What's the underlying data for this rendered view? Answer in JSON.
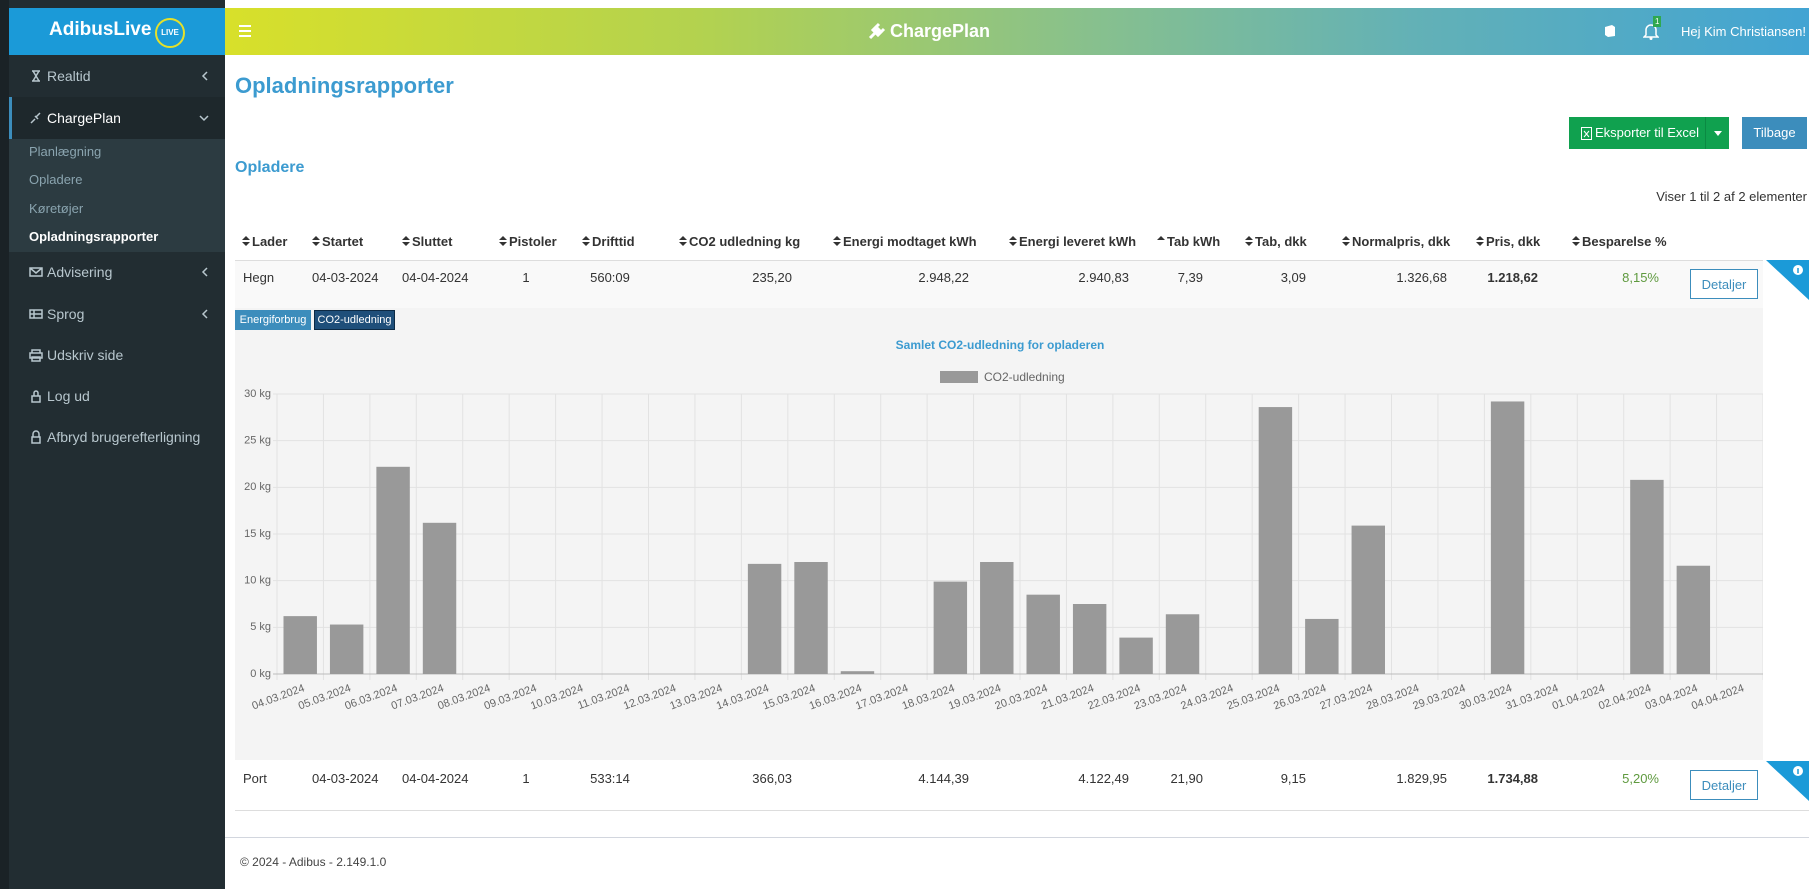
{
  "sidebar": {
    "brand": "AdibusLive",
    "badge": "LIVE",
    "menu": [
      "Realtid",
      "ChargePlan",
      "Advisering",
      "Sprog",
      "Udskriv side",
      "Log ud",
      "Afbryd brugerefterligning"
    ],
    "submenu": [
      "Planlægning",
      "Opladere",
      "Køretøjer",
      "Opladningsrapporter"
    ]
  },
  "header": {
    "app_name": "ChargePlan",
    "notifications": "1",
    "greeting": "Hej Kim Christiansen!"
  },
  "page_title": "Opladningsrapporter",
  "buttons": {
    "export": "Eksporter til Excel",
    "back": "Tilbage"
  },
  "section_title": "Opladere",
  "table": {
    "info": "Viser 1 til 2 af 2 elementer",
    "columns": [
      "Lader",
      "Startet",
      "Sluttet",
      "Pistoler",
      "Drifttid",
      "CO2 udledning kg",
      "Energi modtaget kWh",
      "Energi leveret kWh",
      "Tab kWh",
      "Tab, dkk",
      "Normalpris, dkk",
      "Pris, dkk",
      "Besparelse %"
    ],
    "rows": [
      [
        "Hegn",
        "04-03-2024",
        "04-04-2024",
        "1",
        "560:09",
        "235,20",
        "2.948,22",
        "2.940,83",
        "7,39",
        "3,09",
        "1.326,68",
        "1.218,62",
        "8,15%"
      ],
      [
        "Port",
        "04-03-2024",
        "04-04-2024",
        "1",
        "533:14",
        "366,03",
        "4.144,39",
        "4.122,49",
        "21,90",
        "9,15",
        "1.829,95",
        "1.734,88",
        "5,20%"
      ]
    ],
    "row_action": "Detaljer"
  },
  "chart_tabs": [
    "Energiforbrug",
    "CO2-udledning"
  ],
  "chart_data": {
    "type": "bar",
    "title": "Samlet CO2-udledning for opladeren",
    "categories": [
      "04.03.2024",
      "05.03.2024",
      "06.03.2024",
      "07.03.2024",
      "08.03.2024",
      "09.03.2024",
      "10.03.2024",
      "11.03.2024",
      "12.03.2024",
      "13.03.2024",
      "14.03.2024",
      "15.03.2024",
      "16.03.2024",
      "17.03.2024",
      "18.03.2024",
      "19.03.2024",
      "20.03.2024",
      "21.03.2024",
      "22.03.2024",
      "23.03.2024",
      "24.03.2024",
      "25.03.2024",
      "26.03.2024",
      "27.03.2024",
      "28.03.2024",
      "29.03.2024",
      "30.03.2024",
      "31.03.2024",
      "01.04.2024",
      "02.04.2024",
      "03.04.2024",
      "04.04.2024"
    ],
    "series": [
      {
        "name": "CO2-udledning",
        "color": "#999999",
        "values": [
          6.2,
          5.3,
          22.2,
          16.2,
          0,
          0,
          0,
          0,
          0,
          0,
          11.8,
          12.0,
          0.3,
          0,
          9.9,
          12.0,
          8.5,
          7.5,
          3.9,
          6.4,
          0,
          28.6,
          5.9,
          15.9,
          0,
          0,
          29.2,
          0,
          0,
          20.8,
          11.6,
          0
        ]
      }
    ],
    "ylim": [
      0,
      30
    ],
    "yticks": [
      {
        "value": 0,
        "label": "0 kg"
      },
      {
        "value": 5,
        "label": "5 kg"
      },
      {
        "value": 10,
        "label": "10 kg"
      },
      {
        "value": 15,
        "label": "15 kg"
      },
      {
        "value": 20,
        "label": "20 kg"
      },
      {
        "value": 25,
        "label": "25 kg"
      },
      {
        "value": 30,
        "label": "30 kg"
      }
    ],
    "grid": true,
    "legend": "top"
  },
  "footer": "© 2024 - Adibus - 2.149.1.0"
}
